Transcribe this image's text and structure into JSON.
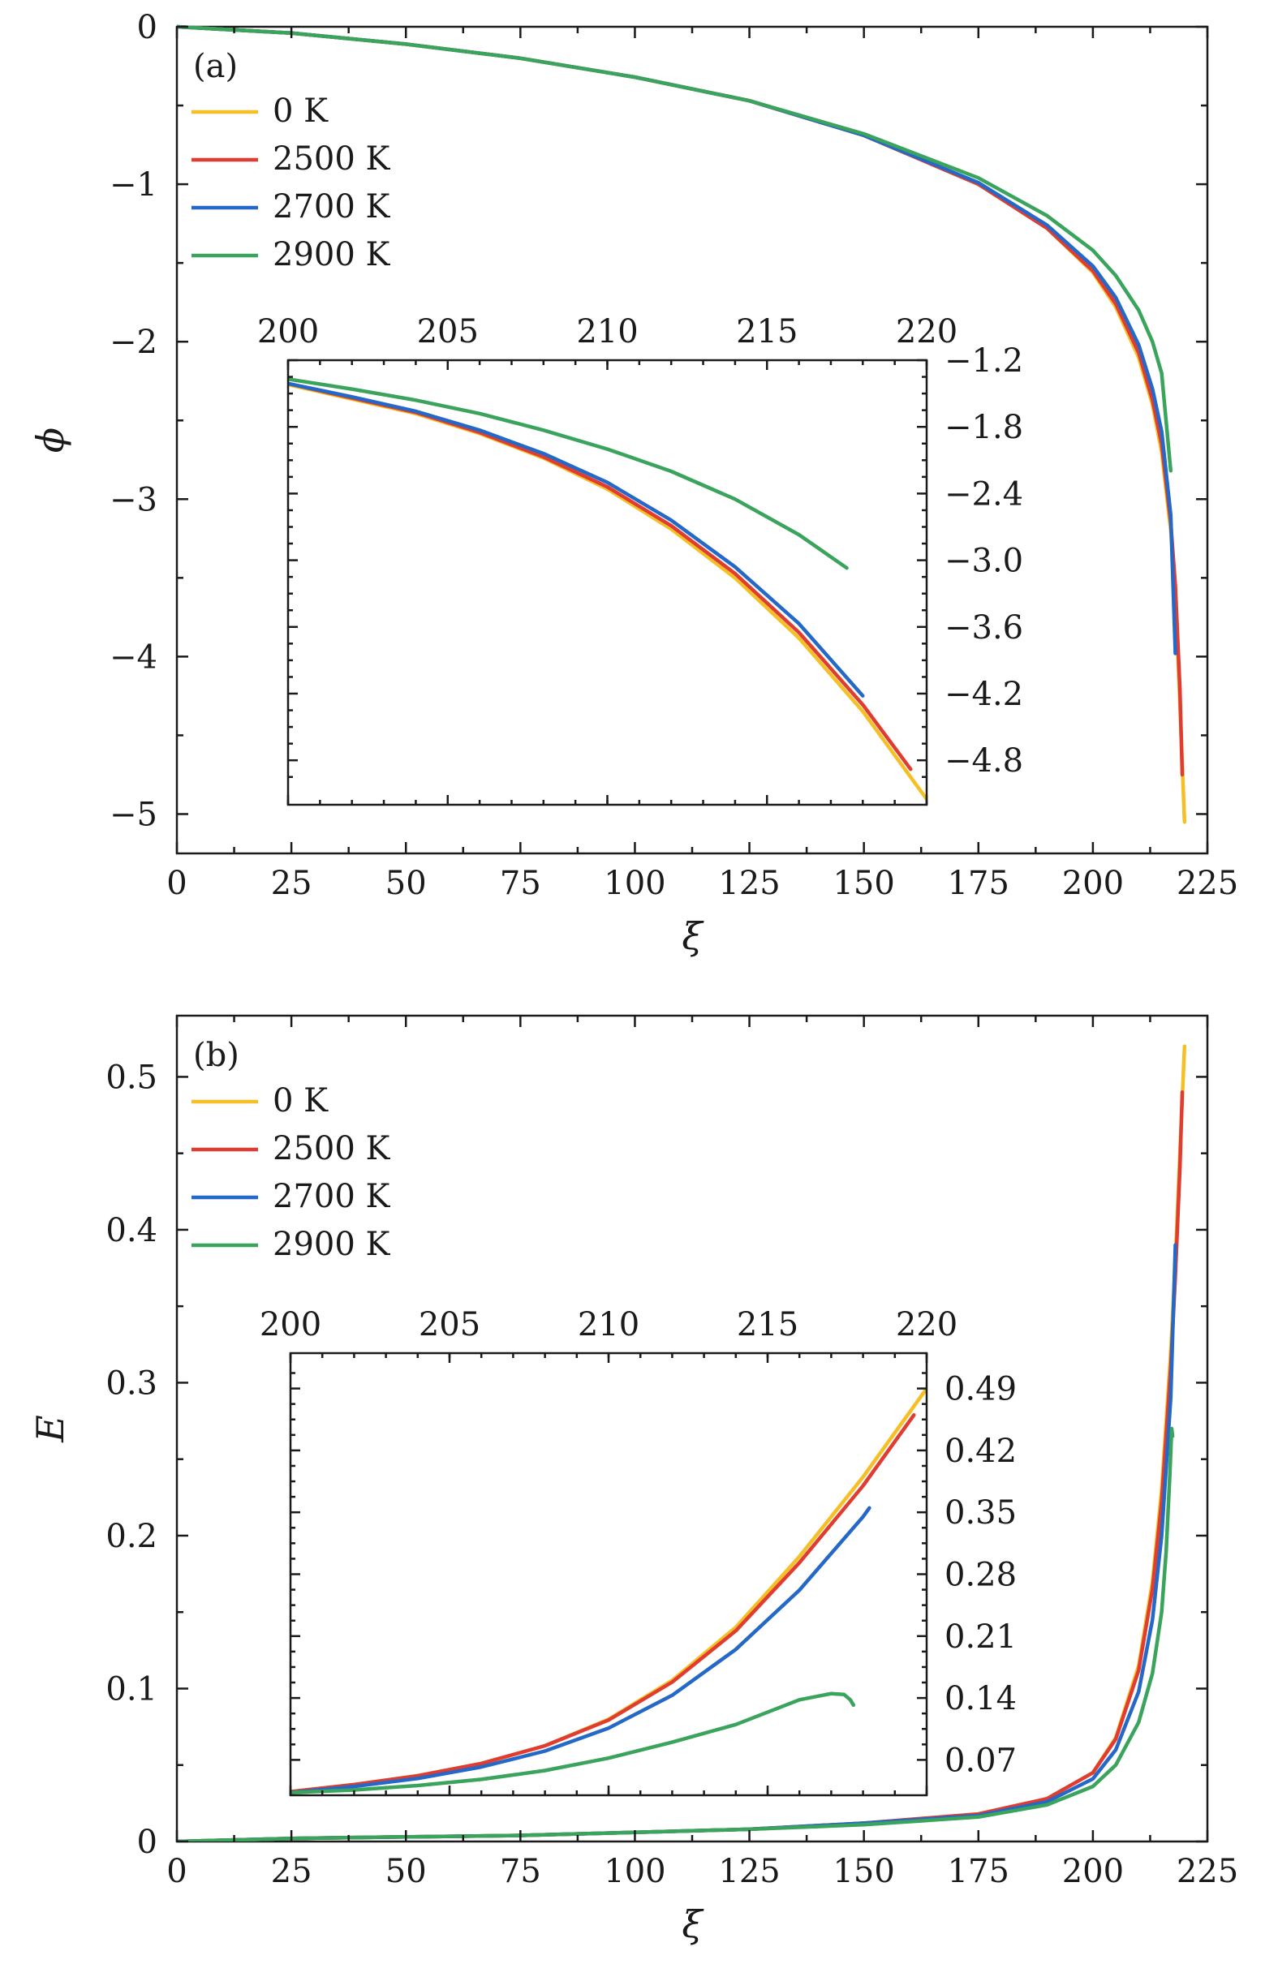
{
  "chart_data": [
    {
      "id": "phi",
      "type": "line",
      "panel_label": "(a)",
      "xlabel": "ξ",
      "ylabel": "ϕ",
      "xlim": [
        0,
        225
      ],
      "ylim": [
        -5.25,
        0
      ],
      "xticks": [
        0,
        25,
        50,
        75,
        100,
        125,
        150,
        175,
        200,
        225
      ],
      "xtick_labels": [
        "0",
        "25",
        "50",
        "75",
        "100",
        "125",
        "150",
        "175",
        "200",
        "225"
      ],
      "yticks": [
        0,
        -1,
        -2,
        -3,
        -4,
        -5
      ],
      "ytick_labels": [
        "0",
        "−1",
        "−2",
        "−3",
        "−4",
        "−5"
      ],
      "legend_position": "upper-left",
      "series": [
        {
          "name": "0 K",
          "color": "#f5c026",
          "x": [
            0,
            25,
            50,
            75,
            100,
            125,
            150,
            175,
            190,
            200,
            205,
            210,
            213,
            215,
            217,
            218,
            219,
            220
          ],
          "y": [
            0,
            -0.04,
            -0.11,
            -0.2,
            -0.32,
            -0.47,
            -0.69,
            -1.0,
            -1.28,
            -1.56,
            -1.78,
            -2.1,
            -2.4,
            -2.7,
            -3.2,
            -3.6,
            -4.3,
            -5.05
          ]
        },
        {
          "name": "2500 K",
          "color": "#e03c31",
          "x": [
            0,
            25,
            50,
            75,
            100,
            125,
            150,
            175,
            190,
            200,
            205,
            210,
            213,
            215,
            217,
            218,
            219,
            219.5
          ],
          "y": [
            0,
            -0.04,
            -0.11,
            -0.2,
            -0.32,
            -0.47,
            -0.69,
            -1.0,
            -1.28,
            -1.55,
            -1.76,
            -2.07,
            -2.37,
            -2.65,
            -3.15,
            -3.55,
            -4.2,
            -4.75
          ]
        },
        {
          "name": "2700 K",
          "color": "#2468c8",
          "x": [
            0,
            25,
            50,
            75,
            100,
            125,
            150,
            175,
            190,
            200,
            205,
            210,
            213,
            215,
            217,
            218
          ],
          "y": [
            0,
            -0.04,
            -0.11,
            -0.2,
            -0.32,
            -0.47,
            -0.69,
            -0.99,
            -1.26,
            -1.52,
            -1.72,
            -2.02,
            -2.3,
            -2.57,
            -3.1,
            -3.98
          ]
        },
        {
          "name": "2900 K",
          "color": "#3aa35c",
          "x": [
            0,
            25,
            50,
            75,
            100,
            125,
            150,
            175,
            190,
            200,
            205,
            210,
            213,
            215,
            217
          ],
          "y": [
            0,
            -0.04,
            -0.11,
            -0.2,
            -0.32,
            -0.47,
            -0.68,
            -0.96,
            -1.2,
            -1.42,
            -1.58,
            -1.8,
            -2.0,
            -2.2,
            -2.82
          ]
        }
      ],
      "inset": {
        "xlim": [
          200,
          220
        ],
        "ylim": [
          -5.2,
          -1.2
        ],
        "xticks": [
          200,
          205,
          210,
          215,
          220
        ],
        "xtick_labels": [
          "200",
          "205",
          "210",
          "215",
          "220"
        ],
        "yticks": [
          -1.2,
          -1.8,
          -2.4,
          -3.0,
          -3.6,
          -4.2,
          -4.8
        ],
        "ytick_labels": [
          "−1.2",
          "−1.8",
          "−2.4",
          "−3.0",
          "−3.6",
          "−4.2",
          "−4.8"
        ],
        "series": [
          {
            "name": "0 K",
            "color": "#f5c026",
            "x": [
              200,
              202,
              204,
              206,
              208,
              210,
              212,
              214,
              216,
              218,
              220
            ],
            "y": [
              -1.42,
              -1.55,
              -1.68,
              -1.86,
              -2.08,
              -2.36,
              -2.72,
              -3.16,
              -3.7,
              -4.36,
              -5.15
            ]
          },
          {
            "name": "2500 K",
            "color": "#e03c31",
            "x": [
              200,
              202,
              204,
              206,
              208,
              210,
              212,
              214,
              216,
              218,
              219.5
            ],
            "y": [
              -1.41,
              -1.54,
              -1.67,
              -1.85,
              -2.07,
              -2.34,
              -2.69,
              -3.12,
              -3.65,
              -4.3,
              -4.88
            ]
          },
          {
            "name": "2700 K",
            "color": "#2468c8",
            "x": [
              200,
              202,
              204,
              206,
              208,
              210,
              212,
              214,
              216,
              218
            ],
            "y": [
              -1.41,
              -1.53,
              -1.66,
              -1.83,
              -2.04,
              -2.3,
              -2.64,
              -3.06,
              -3.57,
              -4.22
            ]
          },
          {
            "name": "2900 K",
            "color": "#3aa35c",
            "x": [
              200,
              202,
              204,
              206,
              208,
              210,
              212,
              214,
              216,
              217.5
            ],
            "y": [
              -1.37,
              -1.46,
              -1.56,
              -1.68,
              -1.83,
              -2.0,
              -2.2,
              -2.45,
              -2.77,
              -3.07
            ]
          }
        ]
      }
    },
    {
      "id": "E",
      "type": "line",
      "panel_label": "(b)",
      "xlabel": "ξ",
      "ylabel": "E",
      "xlim": [
        0,
        225
      ],
      "ylim": [
        0,
        0.54
      ],
      "xticks": [
        0,
        25,
        50,
        75,
        100,
        125,
        150,
        175,
        200,
        225
      ],
      "xtick_labels": [
        "0",
        "25",
        "50",
        "75",
        "100",
        "125",
        "150",
        "175",
        "200",
        "225"
      ],
      "yticks": [
        0,
        0.1,
        0.2,
        0.3,
        0.4,
        0.5
      ],
      "ytick_labels": [
        "0",
        "0.1",
        "0.2",
        "0.3",
        "0.4",
        "0.5"
      ],
      "legend_position": "upper-left",
      "series": [
        {
          "name": "0 K",
          "color": "#f5c026",
          "x": [
            0,
            25,
            50,
            75,
            100,
            125,
            150,
            175,
            190,
            200,
            205,
            210,
            213,
            215,
            217,
            218,
            219,
            220
          ],
          "y": [
            0,
            0.002,
            0.003,
            0.004,
            0.006,
            0.008,
            0.012,
            0.018,
            0.028,
            0.045,
            0.068,
            0.115,
            0.17,
            0.23,
            0.32,
            0.38,
            0.45,
            0.52
          ]
        },
        {
          "name": "2500 K",
          "color": "#e03c31",
          "x": [
            0,
            25,
            50,
            75,
            100,
            125,
            150,
            175,
            190,
            200,
            205,
            210,
            213,
            215,
            217,
            218,
            219,
            219.5
          ],
          "y": [
            0,
            0.002,
            0.003,
            0.004,
            0.006,
            0.008,
            0.012,
            0.018,
            0.028,
            0.045,
            0.067,
            0.112,
            0.165,
            0.222,
            0.31,
            0.37,
            0.44,
            0.49
          ]
        },
        {
          "name": "2700 K",
          "color": "#2468c8",
          "x": [
            0,
            25,
            50,
            75,
            100,
            125,
            150,
            175,
            190,
            200,
            205,
            210,
            213,
            215,
            217,
            218
          ],
          "y": [
            0,
            0.002,
            0.003,
            0.004,
            0.006,
            0.008,
            0.012,
            0.017,
            0.026,
            0.041,
            0.06,
            0.098,
            0.145,
            0.2,
            0.29,
            0.39
          ]
        },
        {
          "name": "2900 K",
          "color": "#3aa35c",
          "x": [
            0,
            25,
            50,
            75,
            100,
            125,
            150,
            175,
            190,
            200,
            205,
            210,
            213,
            215,
            216,
            216.8,
            217.2,
            217.4
          ],
          "y": [
            0,
            0.002,
            0.003,
            0.004,
            0.006,
            0.008,
            0.011,
            0.016,
            0.024,
            0.036,
            0.05,
            0.078,
            0.11,
            0.15,
            0.19,
            0.24,
            0.27,
            0.265
          ]
        }
      ],
      "inset": {
        "xlim": [
          200,
          220
        ],
        "ylim": [
          0.03,
          0.53
        ],
        "xticks": [
          200,
          205,
          210,
          215,
          220
        ],
        "xtick_labels": [
          "200",
          "205",
          "210",
          "215",
          "220"
        ],
        "yticks": [
          0.07,
          0.14,
          0.21,
          0.28,
          0.35,
          0.42,
          0.49
        ],
        "ytick_labels": [
          "0.07",
          "0.14",
          "0.21",
          "0.28",
          "0.35",
          "0.42",
          "0.49"
        ],
        "series": [
          {
            "name": "0 K",
            "color": "#f5c026",
            "x": [
              200,
              202,
              204,
              206,
              208,
              210,
              212,
              214,
              216,
              218,
              220
            ],
            "y": [
              0.034,
              0.042,
              0.052,
              0.066,
              0.086,
              0.116,
              0.16,
              0.22,
              0.3,
              0.39,
              0.49
            ]
          },
          {
            "name": "2500 K",
            "color": "#e03c31",
            "x": [
              200,
              202,
              204,
              206,
              208,
              210,
              212,
              214,
              216,
              218,
              219.6
            ],
            "y": [
              0.034,
              0.042,
              0.052,
              0.066,
              0.086,
              0.115,
              0.158,
              0.216,
              0.293,
              0.38,
              0.46
            ]
          },
          {
            "name": "2700 K",
            "color": "#2468c8",
            "x": [
              200,
              202,
              204,
              206,
              208,
              210,
              212,
              214,
              216,
              218,
              218.2
            ],
            "y": [
              0.033,
              0.04,
              0.049,
              0.062,
              0.08,
              0.106,
              0.143,
              0.195,
              0.262,
              0.345,
              0.355
            ]
          },
          {
            "name": "2900 K",
            "color": "#3aa35c",
            "x": [
              200,
              202,
              204,
              206,
              208,
              210,
              212,
              214,
              216,
              217,
              217.4,
              217.6,
              217.7
            ],
            "y": [
              0.033,
              0.036,
              0.041,
              0.048,
              0.058,
              0.072,
              0.09,
              0.11,
              0.138,
              0.145,
              0.144,
              0.138,
              0.132
            ]
          }
        ]
      }
    }
  ]
}
